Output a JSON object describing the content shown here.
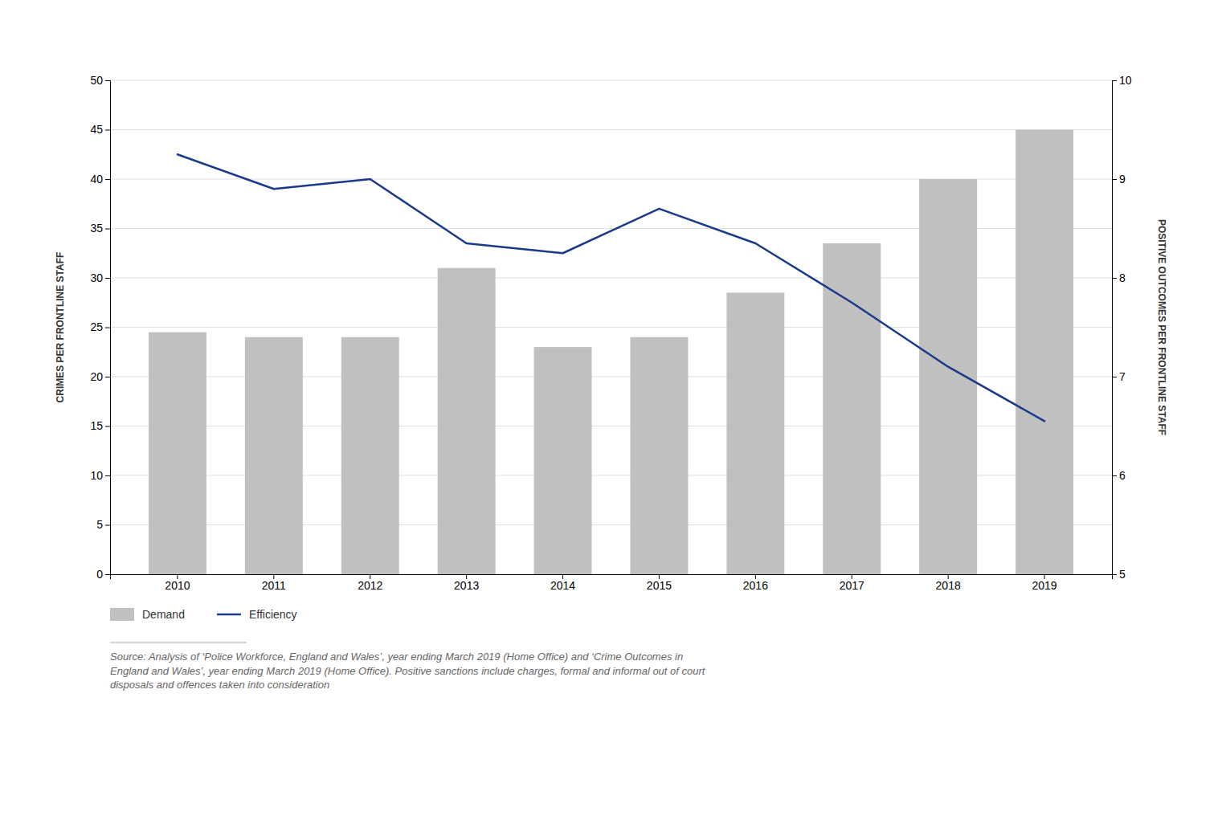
{
  "chart_data": {
    "type": "bar",
    "categories": [
      "2010",
      "2011",
      "2012",
      "2013",
      "2014",
      "2015",
      "2016",
      "2017",
      "2018",
      "2019"
    ],
    "series": [
      {
        "name": "Demand",
        "type": "bar",
        "color": "#c0c0c0",
        "values": [
          24.5,
          24.0,
          24.0,
          31.0,
          23.0,
          24.0,
          28.5,
          33.5,
          40.0,
          45.0
        ]
      },
      {
        "name": "Efficiency",
        "type": "line",
        "color": "#1a3a8a",
        "axis": "y2",
        "values": [
          9.25,
          8.9,
          9.0,
          8.35,
          8.25,
          8.7,
          8.35,
          7.75,
          7.1,
          6.55
        ]
      }
    ],
    "ylabel": "CRIMES PER FRONTLINE STAFF",
    "y2label": "POSITIVE OUTCOMES PER FRONTLINE STAFF",
    "ylim": [
      0,
      50
    ],
    "yticks": [
      0,
      5,
      10,
      15,
      20,
      25,
      30,
      35,
      40,
      45,
      50
    ],
    "y2lim": [
      5,
      10
    ],
    "y2ticks": [
      5,
      6,
      7,
      8,
      9,
      10
    ],
    "grid": true,
    "legend": "bottom",
    "annotations": [
      "Source: Analysis of ‘Police Workforce, England and Wales’, year ending March 2019 (Home Office) and ‘Crime Outcomes in\nEngland and Wales’, year ending March 2019 (Home Office). Positive sanctions include charges, formal and informal out of court\ndisposals and offences taken into consideration"
    ]
  }
}
